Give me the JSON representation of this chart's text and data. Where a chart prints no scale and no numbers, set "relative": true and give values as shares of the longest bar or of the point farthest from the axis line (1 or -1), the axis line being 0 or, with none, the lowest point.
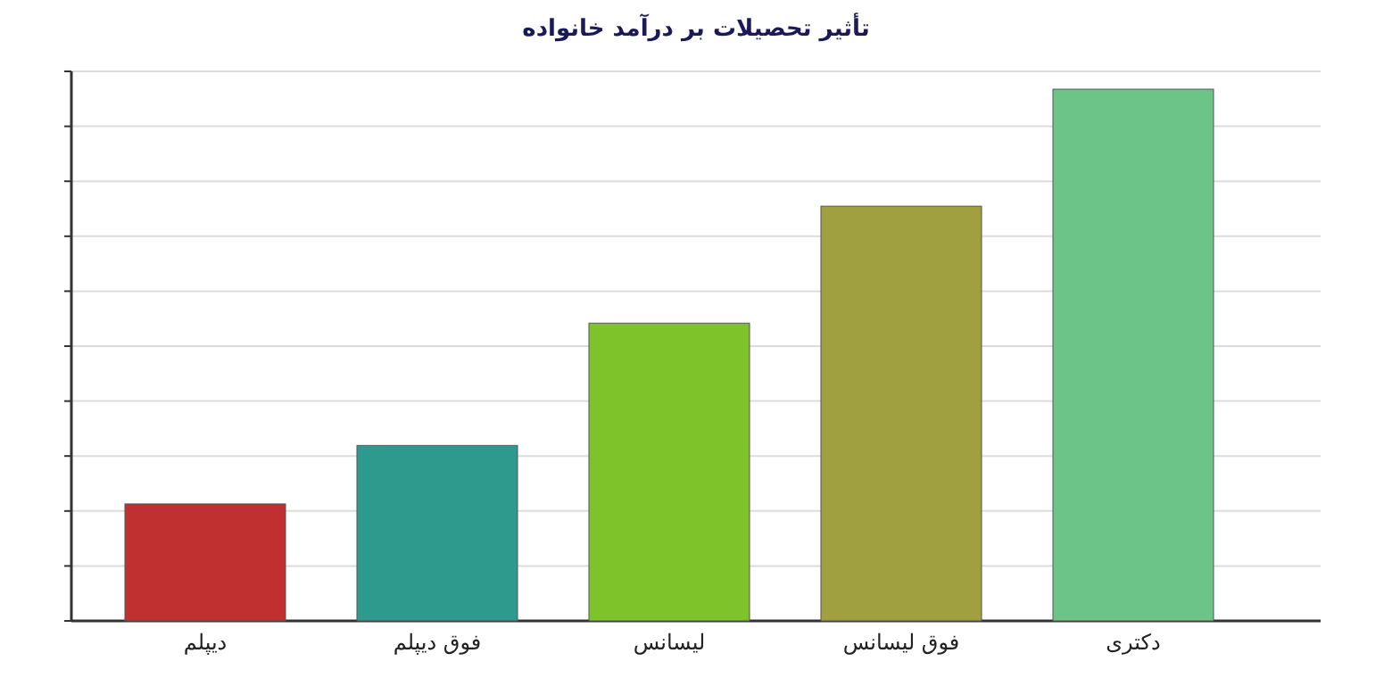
{
  "chart_data": {
    "type": "bar",
    "title": "تأثیر تحصیلات بر درآمد خانواده",
    "categories": [
      "دیپلم",
      "فوق دیپلم",
      "لیسانس",
      "فوق لیسانس",
      "دکتری"
    ],
    "values": [
      0.22,
      0.33,
      0.56,
      0.78,
      1
    ],
    "colors": [
      "#c03030",
      "#2e9a8e",
      "#7cc42a",
      "#a0a040",
      "#6cc488"
    ],
    "relative": true,
    "grid": true
  }
}
